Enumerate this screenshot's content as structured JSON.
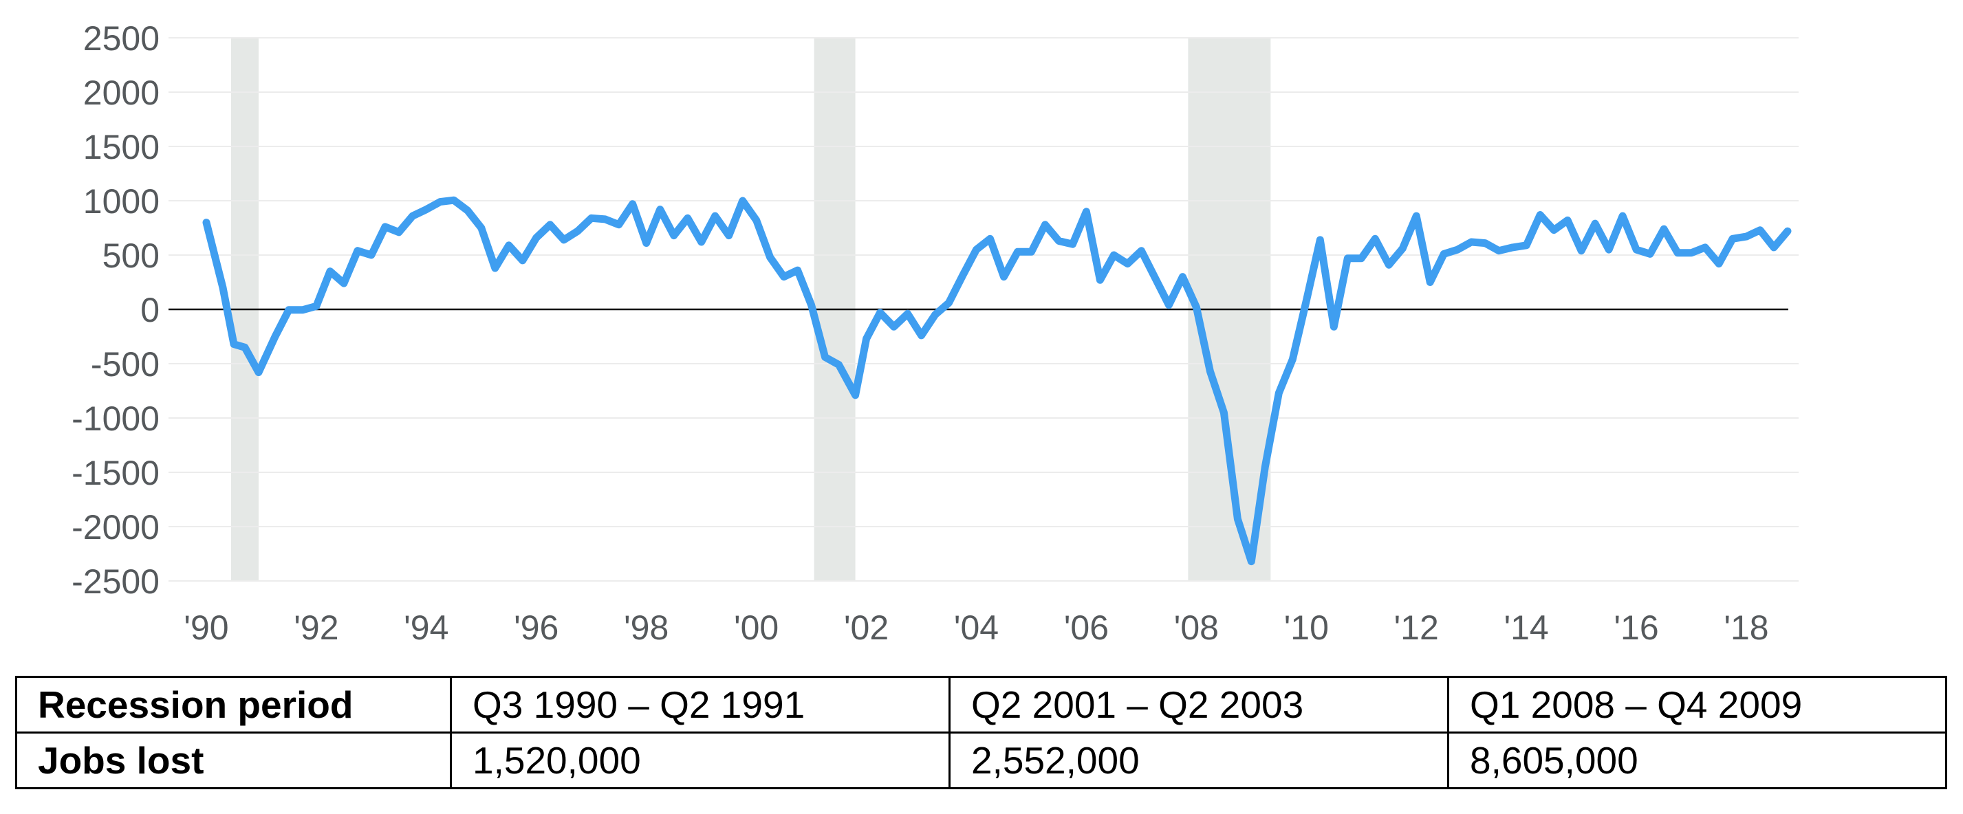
{
  "chart_data": {
    "type": "line",
    "title": "",
    "xlabel": "",
    "ylabel": "",
    "ylim": [
      -2500,
      2500
    ],
    "xlim": [
      1990.0,
      2018.95
    ],
    "yticks": [
      2500,
      2000,
      1500,
      1000,
      500,
      0,
      -500,
      -1000,
      -1500,
      -2000,
      -2500
    ],
    "xticks": [
      {
        "value": 1990,
        "label": "'90"
      },
      {
        "value": 1992,
        "label": "'92"
      },
      {
        "value": 1994,
        "label": "'94"
      },
      {
        "value": 1996,
        "label": "'96"
      },
      {
        "value": 1998,
        "label": "'98"
      },
      {
        "value": 2000,
        "label": "'00"
      },
      {
        "value": 2002,
        "label": "'02"
      },
      {
        "value": 2004,
        "label": "'04"
      },
      {
        "value": 2006,
        "label": "'06"
      },
      {
        "value": 2008,
        "label": "'08"
      },
      {
        "value": 2010,
        "label": "'10"
      },
      {
        "value": 2012,
        "label": "'12"
      },
      {
        "value": 2014,
        "label": "'14"
      },
      {
        "value": 2016,
        "label": "'16"
      },
      {
        "value": 2018,
        "label": "'18"
      }
    ],
    "grid": true,
    "zero_line": true,
    "line_color": "#3f9ef0",
    "shade_color": "#e5e8e6",
    "recession_shading": [
      {
        "start": 1990.45,
        "end": 1990.95
      },
      {
        "start": 2001.05,
        "end": 2001.8
      },
      {
        "start": 2007.85,
        "end": 2009.35
      }
    ],
    "series": [
      {
        "points": [
          [
            1990.0,
            800
          ],
          [
            1990.3,
            200
          ],
          [
            1990.5,
            -320
          ],
          [
            1990.7,
            -350
          ],
          [
            1990.95,
            -580
          ],
          [
            1991.25,
            -250
          ],
          [
            1991.5,
            -5
          ],
          [
            1991.75,
            -5
          ],
          [
            1992.0,
            30
          ],
          [
            1992.25,
            350
          ],
          [
            1992.5,
            240
          ],
          [
            1992.75,
            540
          ],
          [
            1993.0,
            500
          ],
          [
            1993.25,
            760
          ],
          [
            1993.5,
            710
          ],
          [
            1993.75,
            860
          ],
          [
            1994.0,
            920
          ],
          [
            1994.25,
            990
          ],
          [
            1994.5,
            1005
          ],
          [
            1994.75,
            910
          ],
          [
            1995.0,
            750
          ],
          [
            1995.25,
            380
          ],
          [
            1995.5,
            590
          ],
          [
            1995.75,
            450
          ],
          [
            1996.0,
            660
          ],
          [
            1996.25,
            780
          ],
          [
            1996.5,
            640
          ],
          [
            1996.75,
            720
          ],
          [
            1997.0,
            840
          ],
          [
            1997.25,
            830
          ],
          [
            1997.5,
            780
          ],
          [
            1997.75,
            970
          ],
          [
            1998.0,
            610
          ],
          [
            1998.25,
            920
          ],
          [
            1998.5,
            680
          ],
          [
            1998.75,
            840
          ],
          [
            1999.0,
            620
          ],
          [
            1999.25,
            860
          ],
          [
            1999.5,
            680
          ],
          [
            1999.75,
            1000
          ],
          [
            2000.0,
            820
          ],
          [
            2000.25,
            480
          ],
          [
            2000.5,
            300
          ],
          [
            2000.75,
            360
          ],
          [
            2001.0,
            40
          ],
          [
            2001.25,
            -440
          ],
          [
            2001.5,
            -510
          ],
          [
            2001.8,
            -790
          ],
          [
            2002.0,
            -270
          ],
          [
            2002.25,
            -30
          ],
          [
            2002.5,
            -160
          ],
          [
            2002.75,
            -40
          ],
          [
            2003.0,
            -240
          ],
          [
            2003.25,
            -50
          ],
          [
            2003.5,
            60
          ],
          [
            2003.75,
            310
          ],
          [
            2004.0,
            550
          ],
          [
            2004.25,
            650
          ],
          [
            2004.5,
            300
          ],
          [
            2004.75,
            530
          ],
          [
            2005.0,
            530
          ],
          [
            2005.25,
            780
          ],
          [
            2005.5,
            630
          ],
          [
            2005.75,
            600
          ],
          [
            2006.0,
            900
          ],
          [
            2006.25,
            270
          ],
          [
            2006.5,
            500
          ],
          [
            2006.75,
            420
          ],
          [
            2007.0,
            540
          ],
          [
            2007.25,
            290
          ],
          [
            2007.5,
            40
          ],
          [
            2007.75,
            300
          ],
          [
            2008.0,
            20
          ],
          [
            2008.25,
            -570
          ],
          [
            2008.5,
            -950
          ],
          [
            2008.75,
            -1930
          ],
          [
            2009.0,
            -2320
          ],
          [
            2009.25,
            -1450
          ],
          [
            2009.5,
            -770
          ],
          [
            2009.75,
            -460
          ],
          [
            2010.0,
            80
          ],
          [
            2010.25,
            640
          ],
          [
            2010.5,
            -160
          ],
          [
            2010.75,
            470
          ],
          [
            2011.0,
            470
          ],
          [
            2011.25,
            650
          ],
          [
            2011.5,
            410
          ],
          [
            2011.75,
            560
          ],
          [
            2012.0,
            860
          ],
          [
            2012.25,
            250
          ],
          [
            2012.5,
            510
          ],
          [
            2012.75,
            550
          ],
          [
            2013.0,
            620
          ],
          [
            2013.25,
            610
          ],
          [
            2013.5,
            540
          ],
          [
            2013.75,
            570
          ],
          [
            2014.0,
            590
          ],
          [
            2014.25,
            870
          ],
          [
            2014.5,
            730
          ],
          [
            2014.75,
            820
          ],
          [
            2015.0,
            540
          ],
          [
            2015.25,
            790
          ],
          [
            2015.5,
            550
          ],
          [
            2015.75,
            860
          ],
          [
            2016.0,
            550
          ],
          [
            2016.25,
            510
          ],
          [
            2016.5,
            740
          ],
          [
            2016.75,
            520
          ],
          [
            2017.0,
            520
          ],
          [
            2017.25,
            570
          ],
          [
            2017.5,
            420
          ],
          [
            2017.75,
            650
          ],
          [
            2018.0,
            670
          ],
          [
            2018.25,
            730
          ],
          [
            2018.5,
            570
          ],
          [
            2018.75,
            720
          ]
        ]
      }
    ]
  },
  "table": {
    "rows": [
      {
        "header": "Recession period",
        "cells": [
          "Q3 1990 – Q2 1991",
          "Q2 2001 – Q2 2003",
          "Q1 2008 – Q4 2009"
        ]
      },
      {
        "header": "Jobs lost",
        "cells": [
          "1,520,000",
          "2,552,000",
          "8,605,000"
        ]
      }
    ]
  }
}
